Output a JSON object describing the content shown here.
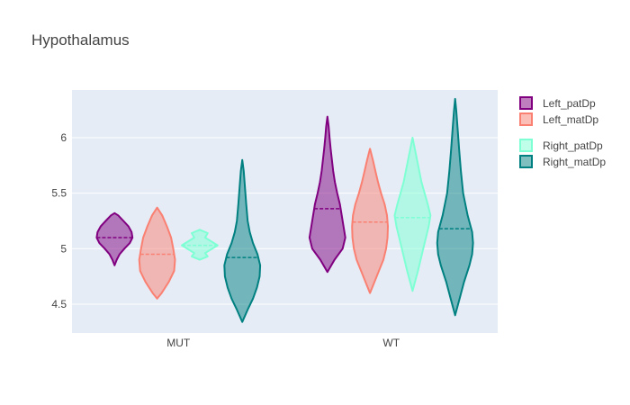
{
  "chart_data": {
    "type": "violin",
    "title": "Hypothalamus",
    "xlabel": "",
    "ylabel": "",
    "categories": [
      "MUT",
      "WT"
    ],
    "yticks": [
      4.5,
      5,
      5.5,
      6
    ],
    "ylim": [
      4.24,
      6.43
    ],
    "grid": true,
    "legend_position": "right",
    "series": [
      {
        "name": "Left_patDp",
        "color": "#800080",
        "violins": [
          {
            "category": "MUT",
            "min": 4.85,
            "max": 5.32,
            "median": 5.1,
            "profile": [
              [
                4.85,
                0.0
              ],
              [
                4.9,
                0.12
              ],
              [
                4.95,
                0.28
              ],
              [
                5.0,
                0.55
              ],
              [
                5.05,
                0.85
              ],
              [
                5.1,
                1.0
              ],
              [
                5.15,
                0.95
              ],
              [
                5.2,
                0.78
              ],
              [
                5.25,
                0.5
              ],
              [
                5.3,
                0.2
              ],
              [
                5.32,
                0.0
              ]
            ]
          },
          {
            "category": "WT",
            "min": 4.79,
            "max": 6.19,
            "median": 5.36,
            "profile": [
              [
                4.79,
                0.0
              ],
              [
                4.9,
                0.4
              ],
              [
                5.0,
                0.85
              ],
              [
                5.1,
                1.0
              ],
              [
                5.2,
                0.9
              ],
              [
                5.3,
                0.8
              ],
              [
                5.4,
                0.7
              ],
              [
                5.5,
                0.55
              ],
              [
                5.6,
                0.42
              ],
              [
                5.7,
                0.32
              ],
              [
                5.8,
                0.25
              ],
              [
                5.9,
                0.18
              ],
              [
                6.0,
                0.12
              ],
              [
                6.1,
                0.07
              ],
              [
                6.19,
                0.0
              ]
            ]
          }
        ]
      },
      {
        "name": "Left_matDp",
        "color": "#fa8072",
        "violins": [
          {
            "category": "MUT",
            "min": 4.55,
            "max": 5.37,
            "median": 4.95,
            "profile": [
              [
                4.55,
                0.0
              ],
              [
                4.6,
                0.25
              ],
              [
                4.7,
                0.65
              ],
              [
                4.8,
                0.95
              ],
              [
                4.9,
                1.0
              ],
              [
                5.0,
                0.9
              ],
              [
                5.1,
                0.78
              ],
              [
                5.2,
                0.55
              ],
              [
                5.3,
                0.28
              ],
              [
                5.37,
                0.0
              ]
            ]
          },
          {
            "category": "WT",
            "min": 4.6,
            "max": 5.9,
            "median": 5.24,
            "profile": [
              [
                4.6,
                0.0
              ],
              [
                4.7,
                0.25
              ],
              [
                4.8,
                0.5
              ],
              [
                4.9,
                0.75
              ],
              [
                5.0,
                0.9
              ],
              [
                5.1,
                0.98
              ],
              [
                5.2,
                1.0
              ],
              [
                5.3,
                0.95
              ],
              [
                5.4,
                0.82
              ],
              [
                5.5,
                0.62
              ],
              [
                5.6,
                0.45
              ],
              [
                5.7,
                0.3
              ],
              [
                5.8,
                0.16
              ],
              [
                5.9,
                0.0
              ]
            ]
          }
        ]
      },
      {
        "name": "Right_patDp",
        "color": "#7fffd4",
        "violins": [
          {
            "category": "MUT",
            "min": 4.9,
            "max": 5.17,
            "median": 5.03,
            "profile": [
              [
                4.9,
                0.0
              ],
              [
                4.93,
                0.45
              ],
              [
                4.96,
                0.3
              ],
              [
                5.0,
                0.7
              ],
              [
                5.03,
                1.0
              ],
              [
                5.06,
                0.7
              ],
              [
                5.1,
                0.3
              ],
              [
                5.14,
                0.45
              ],
              [
                5.17,
                0.0
              ]
            ]
          },
          {
            "category": "WT",
            "min": 4.62,
            "max": 6.0,
            "median": 5.28,
            "profile": [
              [
                4.62,
                0.0
              ],
              [
                4.8,
                0.3
              ],
              [
                5.0,
                0.6
              ],
              [
                5.2,
                0.9
              ],
              [
                5.3,
                1.0
              ],
              [
                5.4,
                0.85
              ],
              [
                5.6,
                0.5
              ],
              [
                5.8,
                0.25
              ],
              [
                6.0,
                0.0
              ]
            ]
          }
        ]
      },
      {
        "name": "Right_matDp",
        "color": "#008080",
        "violins": [
          {
            "category": "MUT",
            "min": 4.34,
            "max": 5.8,
            "median": 4.92,
            "profile": [
              [
                4.34,
                0.0
              ],
              [
                4.45,
                0.3
              ],
              [
                4.55,
                0.6
              ],
              [
                4.65,
                0.82
              ],
              [
                4.75,
                0.97
              ],
              [
                4.85,
                1.0
              ],
              [
                4.95,
                0.85
              ],
              [
                5.05,
                0.6
              ],
              [
                5.15,
                0.42
              ],
              [
                5.25,
                0.3
              ],
              [
                5.4,
                0.22
              ],
              [
                5.55,
                0.15
              ],
              [
                5.7,
                0.08
              ],
              [
                5.8,
                0.0
              ]
            ]
          },
          {
            "category": "WT",
            "min": 4.4,
            "max": 6.35,
            "median": 5.18,
            "profile": [
              [
                4.4,
                0.0
              ],
              [
                4.55,
                0.25
              ],
              [
                4.7,
                0.5
              ],
              [
                4.85,
                0.8
              ],
              [
                4.95,
                0.95
              ],
              [
                5.05,
                1.0
              ],
              [
                5.15,
                0.95
              ],
              [
                5.3,
                0.7
              ],
              [
                5.5,
                0.45
              ],
              [
                5.7,
                0.32
              ],
              [
                5.9,
                0.22
              ],
              [
                6.1,
                0.13
              ],
              [
                6.25,
                0.06
              ],
              [
                6.35,
                0.0
              ]
            ]
          }
        ]
      }
    ]
  }
}
